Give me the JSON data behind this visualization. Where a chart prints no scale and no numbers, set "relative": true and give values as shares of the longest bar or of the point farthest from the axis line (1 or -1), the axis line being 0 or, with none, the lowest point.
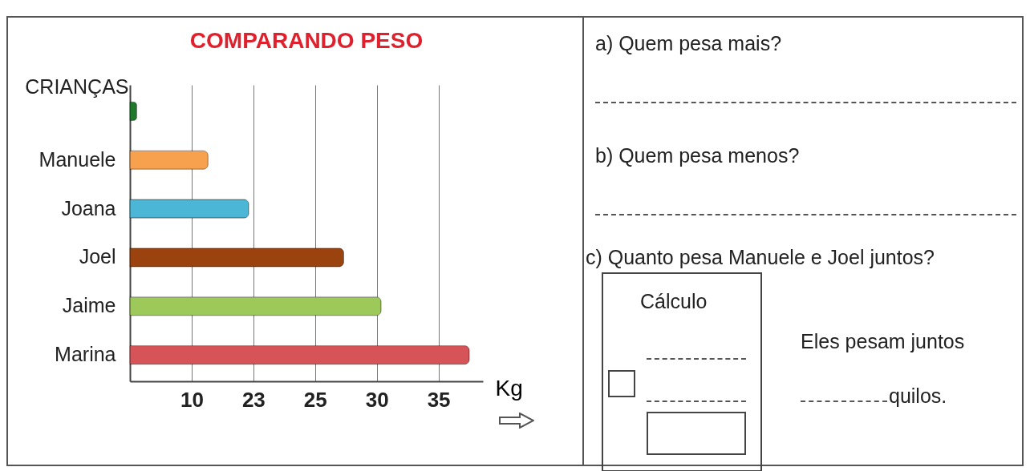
{
  "chart_data": {
    "type": "bar",
    "orientation": "horizontal",
    "relative": true,
    "title": "COMPARANDO PESO",
    "ylabel": "CRIANÇAS",
    "xlabel": "Kg",
    "categories": [
      null,
      "Manuele",
      "Joana",
      "Joel",
      "Jaime",
      "Marina"
    ],
    "values": [
      0.02,
      0.23,
      0.35,
      0.63,
      0.74,
      1
    ],
    "colors": [
      "#1e7a2a",
      "#f7a14e",
      "#4bb6d6",
      "#9a430e",
      "#9dc95a",
      "#d65458"
    ],
    "grid": "x",
    "annotations": [
      "a) Quem pesa mais?",
      "b) Quem pesa menos?",
      "c) Quanto pesa Manuele e Joel juntos?",
      "Cálculo",
      "Eles pesam juntos",
      "quilos.",
      "10",
      "23",
      "25",
      "30",
      "35"
    ]
  }
}
